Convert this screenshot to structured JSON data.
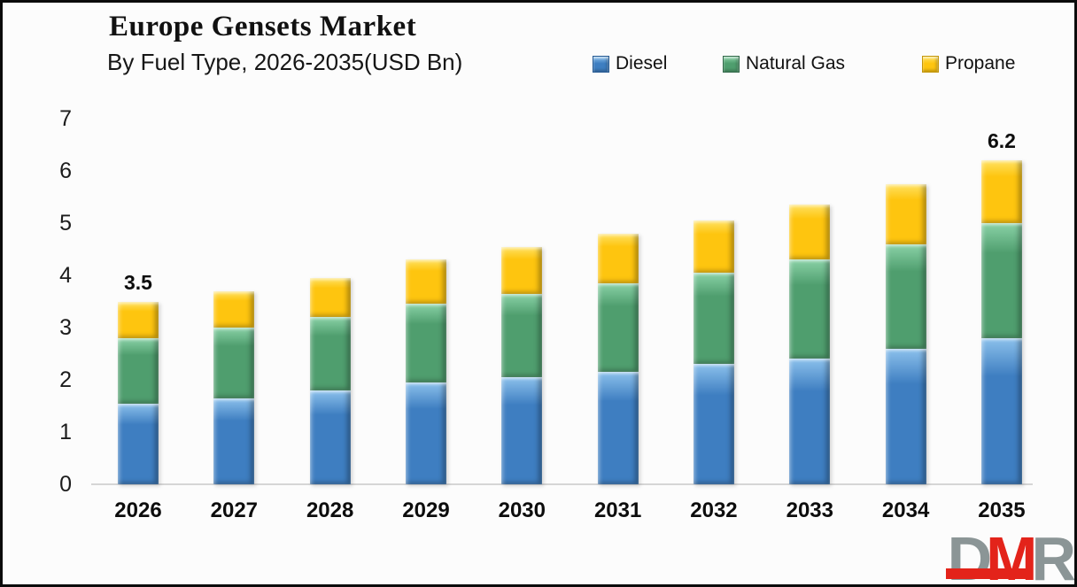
{
  "header": {
    "title": "Europe Gensets Market",
    "subtitle": "By Fuel Type, 2026-2035(USD Bn)"
  },
  "chart_data": {
    "type": "bar",
    "stacked": true,
    "title": "Europe Gensets Market",
    "subtitle": "By Fuel Type, 2026-2035(USD Bn)",
    "unit": "USD Bn",
    "categories": [
      "2026",
      "2027",
      "2028",
      "2029",
      "2030",
      "2031",
      "2032",
      "2033",
      "2034",
      "2035"
    ],
    "series": [
      {
        "name": "Diesel",
        "color": "#3e7ec1",
        "light": "#8cc1ec",
        "dark": "#265a93",
        "values": [
          1.55,
          1.65,
          1.8,
          1.95,
          2.05,
          2.15,
          2.3,
          2.4,
          2.6,
          2.8
        ]
      },
      {
        "name": "Natural Gas",
        "color": "#4f9e6e",
        "light": "#8ad2a7",
        "dark": "#32694a",
        "values": [
          1.25,
          1.35,
          1.4,
          1.5,
          1.6,
          1.7,
          1.75,
          1.9,
          2.0,
          2.2
        ]
      },
      {
        "name": "Propane",
        "color": "#fec50f",
        "light": "#ffe263",
        "dark": "#c4960a",
        "values": [
          0.7,
          0.7,
          0.75,
          0.85,
          0.9,
          0.95,
          1.0,
          1.05,
          1.15,
          1.2
        ]
      }
    ],
    "totals": [
      3.5,
      3.7,
      3.95,
      4.3,
      4.55,
      4.8,
      5.05,
      5.35,
      5.75,
      6.2
    ],
    "bar_labels": {
      "2026": "3.5",
      "2035": "6.2"
    },
    "ylim": [
      0,
      7
    ],
    "yticks": [
      "0",
      "1",
      "2",
      "3",
      "4",
      "5",
      "6",
      "7"
    ],
    "grid": false,
    "legend_position": "top-right",
    "xlabel": "",
    "ylabel": ""
  },
  "logo": {
    "letters": [
      {
        "char": "D",
        "color": "#8b9596"
      },
      {
        "char": "M",
        "color": "#e3231a"
      },
      {
        "char": "R",
        "color": "#8b9596"
      }
    ],
    "accent": "#e3231a"
  }
}
